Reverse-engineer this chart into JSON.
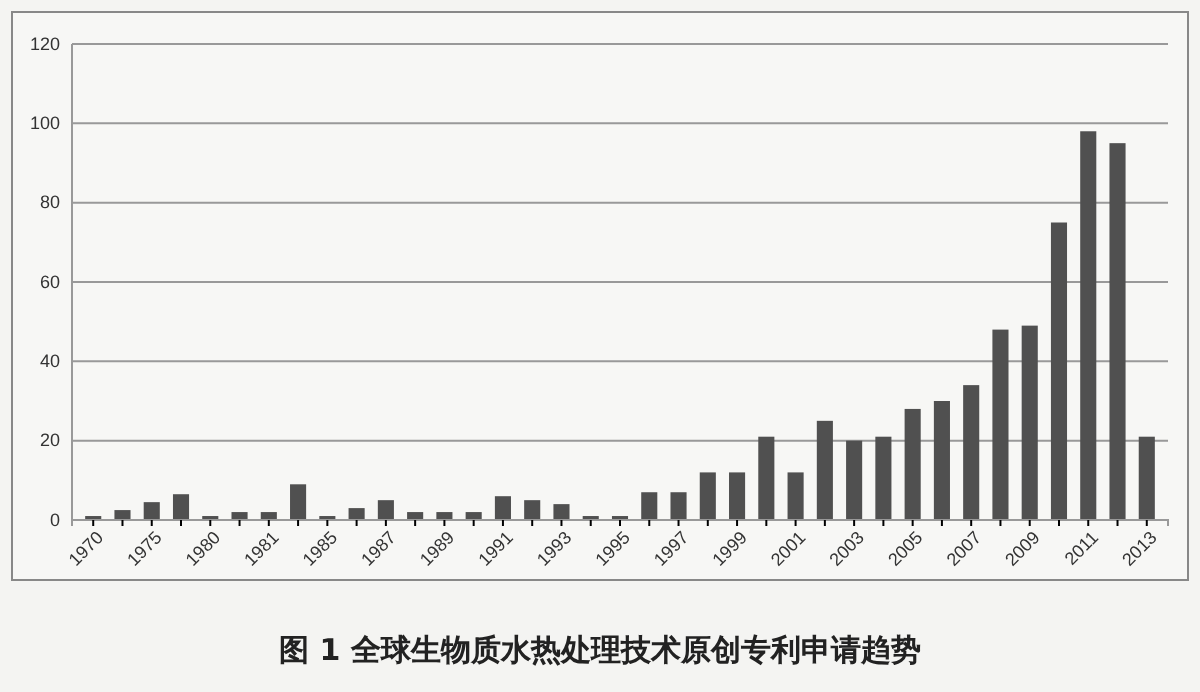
{
  "chart_data": {
    "type": "bar",
    "title": "图 1 全球生物质水热处理技术原创专利申请趋势",
    "categories": [
      "1970",
      null,
      "1975",
      null,
      "1980",
      null,
      "1981",
      null,
      "1985",
      null,
      "1987",
      null,
      "1989",
      null,
      "1991",
      null,
      "1993",
      null,
      "1995",
      null,
      "1997",
      null,
      "1999",
      null,
      "2001",
      null,
      "2003",
      null,
      "2005",
      null,
      "2007",
      null,
      "2009",
      null,
      "2011",
      null,
      "2013"
    ],
    "values": [
      1,
      2.5,
      4.5,
      6.5,
      1,
      2,
      2,
      9,
      1,
      3,
      5,
      2,
      2,
      2,
      6,
      5,
      4,
      1,
      1,
      7,
      7,
      12,
      12,
      21,
      12,
      25,
      20,
      21,
      28,
      30,
      34,
      48,
      49,
      75,
      98,
      95,
      21
    ],
    "color": "#505050",
    "ylim": [
      0,
      120
    ],
    "yticks": [
      0,
      20,
      40,
      60,
      80,
      100,
      120
    ],
    "grid": "y"
  }
}
